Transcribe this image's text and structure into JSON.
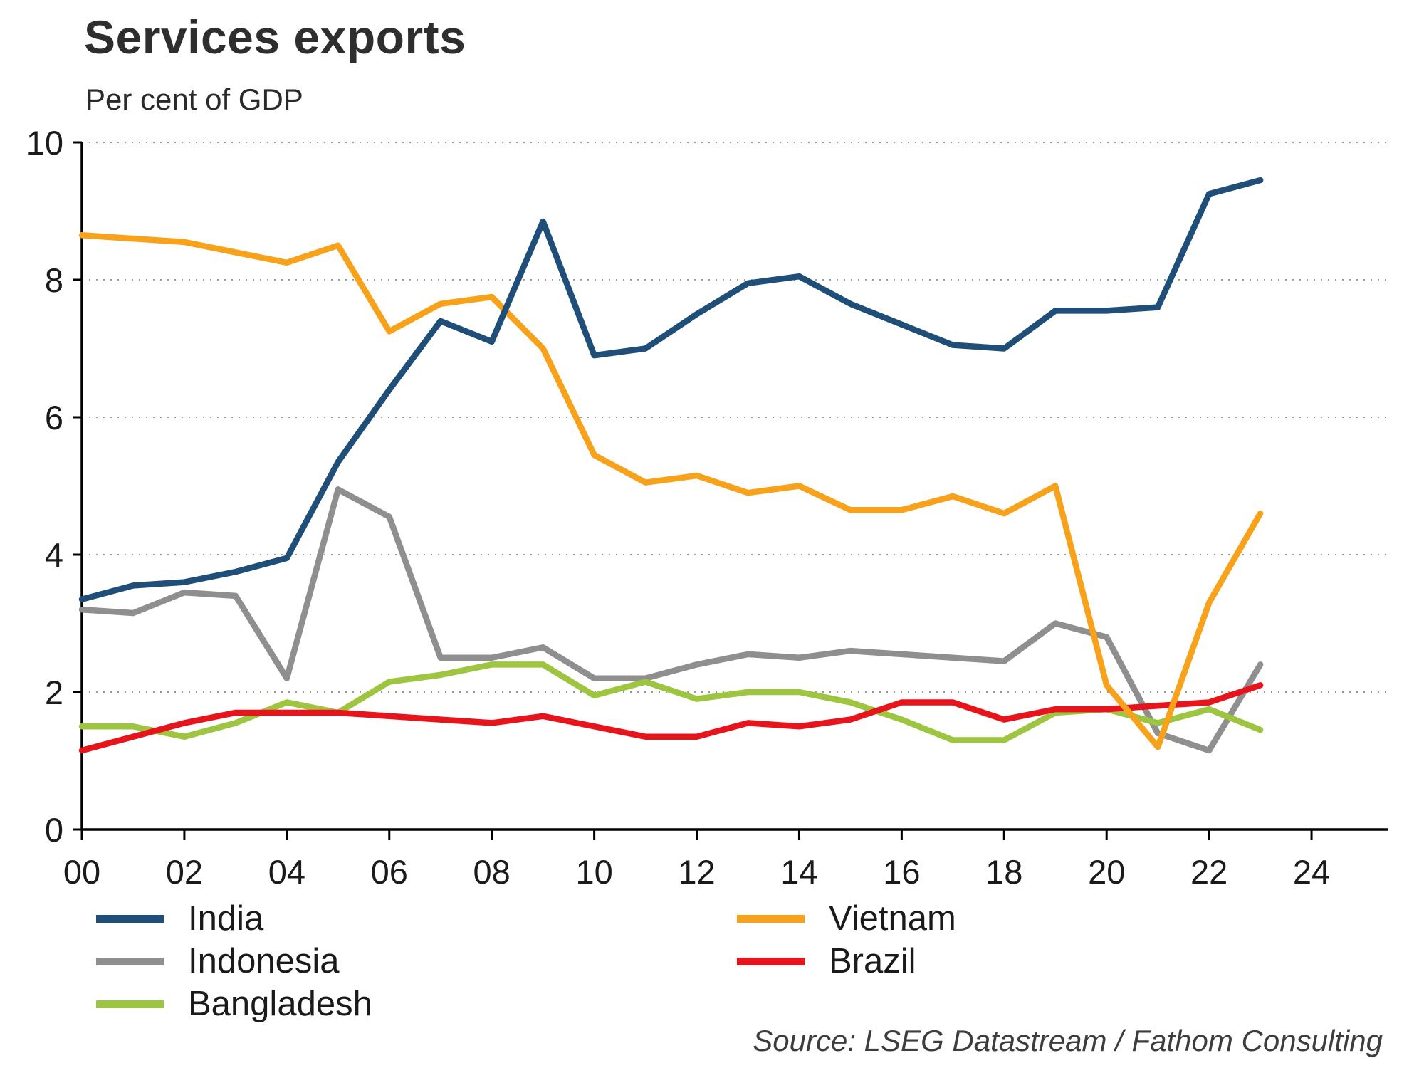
{
  "title": "Services exports",
  "subtitle": "Per cent of GDP",
  "source": "Source: LSEG Datastream / Fathom Consulting",
  "colors": {
    "axis": "#000000",
    "grid": "#9a9a9a",
    "tick_text": "#1a1a1a"
  },
  "chart_data": {
    "type": "line",
    "title": "Services exports",
    "ylabel": "Per cent of GDP",
    "xlabel": "",
    "xlim": [
      2000,
      2025.5
    ],
    "ylim": [
      0,
      10
    ],
    "y_ticks": [
      0,
      2,
      4,
      6,
      8,
      10
    ],
    "x_ticks": [
      2000,
      2002,
      2004,
      2006,
      2008,
      2010,
      2012,
      2014,
      2016,
      2018,
      2020,
      2022,
      2024
    ],
    "x_tick_labels": [
      "00",
      "02",
      "04",
      "06",
      "08",
      "10",
      "12",
      "14",
      "16",
      "18",
      "20",
      "22",
      "24"
    ],
    "grid": "horizontal-dotted",
    "legend_position": "bottom",
    "x": [
      2000,
      2001,
      2002,
      2003,
      2004,
      2005,
      2006,
      2007,
      2008,
      2009,
      2010,
      2011,
      2012,
      2013,
      2014,
      2015,
      2016,
      2017,
      2018,
      2019,
      2020,
      2021,
      2022,
      2023
    ],
    "series": [
      {
        "name": "India",
        "color": "#1f4e79",
        "values": [
          3.35,
          3.55,
          3.6,
          3.75,
          3.95,
          5.35,
          6.4,
          7.4,
          7.1,
          8.85,
          6.9,
          7.0,
          7.5,
          7.95,
          8.05,
          7.65,
          7.35,
          7.05,
          7.0,
          7.55,
          7.55,
          7.6,
          9.25,
          9.45
        ]
      },
      {
        "name": "Vietnam",
        "color": "#f7a21a",
        "values": [
          8.65,
          8.6,
          8.55,
          8.4,
          8.25,
          8.5,
          7.25,
          7.65,
          7.75,
          7.0,
          5.45,
          5.05,
          5.15,
          4.9,
          5.0,
          4.65,
          4.65,
          4.85,
          4.6,
          5.0,
          2.1,
          1.2,
          3.3,
          4.6
        ]
      },
      {
        "name": "Indonesia",
        "color": "#8f8f8f",
        "values": [
          3.2,
          3.15,
          3.45,
          3.4,
          2.2,
          4.95,
          4.55,
          2.5,
          2.5,
          2.65,
          2.2,
          2.2,
          2.4,
          2.55,
          2.5,
          2.6,
          2.55,
          2.5,
          2.45,
          3.0,
          2.8,
          1.4,
          1.15,
          2.4
        ]
      },
      {
        "name": "Brazil",
        "color": "#e8141c",
        "values": [
          1.15,
          1.35,
          1.55,
          1.7,
          1.7,
          1.7,
          1.65,
          1.6,
          1.55,
          1.65,
          1.5,
          1.35,
          1.35,
          1.55,
          1.5,
          1.6,
          1.85,
          1.85,
          1.6,
          1.75,
          1.75,
          1.8,
          1.85,
          2.1
        ]
      },
      {
        "name": "Bangladesh",
        "color": "#9dc53f",
        "values": [
          1.5,
          1.5,
          1.35,
          1.55,
          1.85,
          1.7,
          2.15,
          2.25,
          2.4,
          2.4,
          1.95,
          2.15,
          1.9,
          2.0,
          2.0,
          1.85,
          1.6,
          1.3,
          1.3,
          1.7,
          1.75,
          1.55,
          1.75,
          1.45
        ]
      }
    ],
    "draw_order": [
      "Indonesia",
      "Bangladesh",
      "Brazil",
      "Vietnam",
      "India"
    ],
    "legend_columns": [
      [
        "India",
        "Indonesia",
        "Bangladesh"
      ],
      [
        "Vietnam",
        "Brazil"
      ]
    ]
  }
}
